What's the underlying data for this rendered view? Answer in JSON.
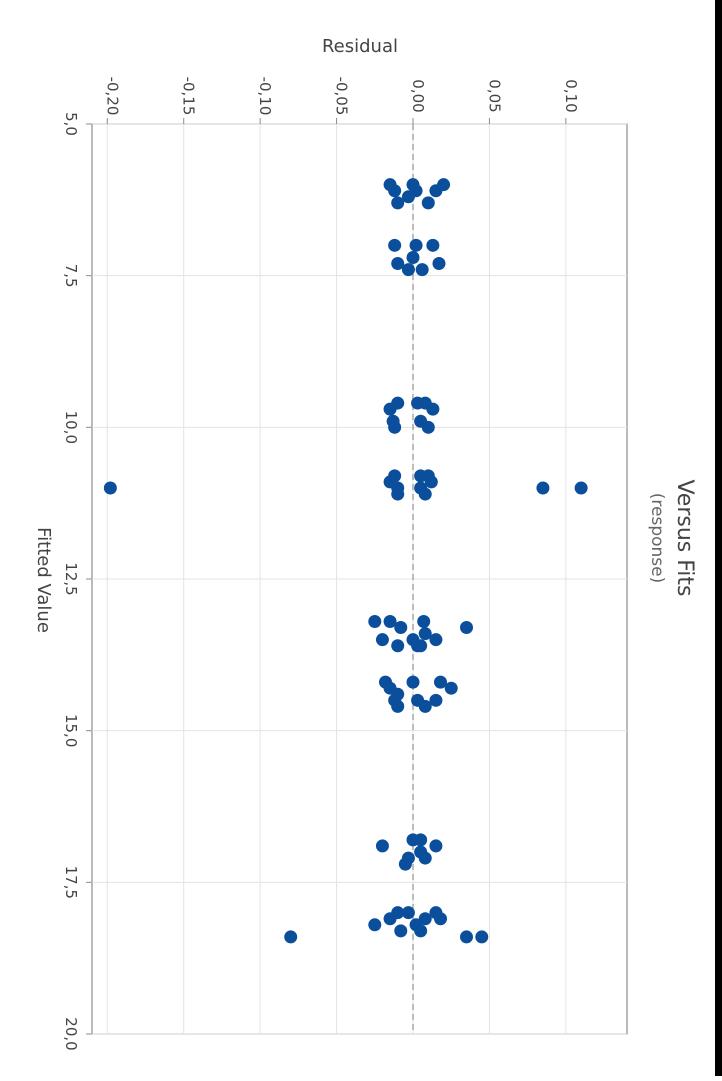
{
  "chart_data": {
    "type": "scatter",
    "title": "Versus Fits",
    "subtitle": "(response)",
    "xlabel": "Fitted Value",
    "ylabel": "Residual",
    "xlim": [
      5.0,
      20.0
    ],
    "ylim": [
      -0.21,
      0.14
    ],
    "x_ticks": [
      "5,0",
      "7,5",
      "10,0",
      "12,5",
      "15,0",
      "17,5",
      "20,0"
    ],
    "y_ticks": [
      "-0,20",
      "-0,15",
      "-0,10",
      "-0,05",
      "0,00",
      "0,05",
      "0,10"
    ],
    "reference_line": 0.0,
    "grid": true,
    "colors": {
      "points": "#0b4f9c",
      "grid": "#e3e3e3",
      "zero_line": "#9a9a9a",
      "frame": "#8c8c8c",
      "text": "#444444"
    },
    "points": [
      [
        6.0,
        -0.015
      ],
      [
        6.1,
        -0.012
      ],
      [
        6.3,
        -0.01
      ],
      [
        6.2,
        -0.003
      ],
      [
        6.0,
        0.0
      ],
      [
        6.1,
        0.002
      ],
      [
        6.3,
        0.01
      ],
      [
        6.1,
        0.015
      ],
      [
        6.0,
        0.02
      ],
      [
        7.0,
        -0.012
      ],
      [
        7.0,
        0.002
      ],
      [
        7.0,
        0.013
      ],
      [
        7.3,
        -0.01
      ],
      [
        7.4,
        -0.003
      ],
      [
        7.2,
        0.0
      ],
      [
        7.4,
        0.006
      ],
      [
        7.3,
        0.017
      ],
      [
        9.6,
        -0.01
      ],
      [
        9.7,
        -0.015
      ],
      [
        9.9,
        -0.013
      ],
      [
        10.0,
        -0.012
      ],
      [
        9.6,
        0.003
      ],
      [
        9.6,
        0.008
      ],
      [
        9.7,
        0.013
      ],
      [
        9.9,
        0.005
      ],
      [
        10.0,
        0.01
      ],
      [
        10.8,
        -0.012
      ],
      [
        10.9,
        -0.015
      ],
      [
        11.0,
        -0.01
      ],
      [
        11.1,
        -0.01
      ],
      [
        10.8,
        0.005
      ],
      [
        10.8,
        0.01
      ],
      [
        10.9,
        0.012
      ],
      [
        11.0,
        0.005
      ],
      [
        11.1,
        0.008
      ],
      [
        11.0,
        -0.198
      ],
      [
        11.0,
        0.085
      ],
      [
        11.0,
        0.11
      ],
      [
        13.2,
        -0.015
      ],
      [
        13.3,
        -0.008
      ],
      [
        13.5,
        0.0
      ],
      [
        13.6,
        0.005
      ],
      [
        13.2,
        -0.025
      ],
      [
        13.5,
        -0.02
      ],
      [
        13.6,
        -0.01
      ],
      [
        13.4,
        0.008
      ],
      [
        13.3,
        0.035
      ],
      [
        13.5,
        0.015
      ],
      [
        13.6,
        0.003
      ],
      [
        13.2,
        0.007
      ],
      [
        14.2,
        -0.018
      ],
      [
        14.3,
        -0.015
      ],
      [
        14.4,
        -0.01
      ],
      [
        14.5,
        -0.012
      ],
      [
        14.6,
        -0.01
      ],
      [
        14.2,
        0.0
      ],
      [
        14.5,
        0.003
      ],
      [
        14.6,
        0.008
      ],
      [
        14.2,
        0.018
      ],
      [
        14.3,
        0.025
      ],
      [
        14.5,
        0.015
      ],
      [
        16.8,
        0.0
      ],
      [
        16.9,
        -0.02
      ],
      [
        16.9,
        0.015
      ],
      [
        17.0,
        0.005
      ],
      [
        17.1,
        0.008
      ],
      [
        17.2,
        -0.005
      ],
      [
        16.8,
        0.005
      ],
      [
        17.1,
        -0.003
      ],
      [
        18.0,
        -0.01
      ],
      [
        18.1,
        -0.015
      ],
      [
        18.2,
        -0.025
      ],
      [
        18.0,
        -0.003
      ],
      [
        18.1,
        0.008
      ],
      [
        18.0,
        0.015
      ],
      [
        18.3,
        -0.008
      ],
      [
        18.2,
        0.002
      ],
      [
        18.1,
        0.018
      ],
      [
        18.3,
        0.005
      ],
      [
        18.4,
        -0.08
      ],
      [
        18.4,
        0.035
      ],
      [
        18.4,
        0.045
      ]
    ]
  }
}
